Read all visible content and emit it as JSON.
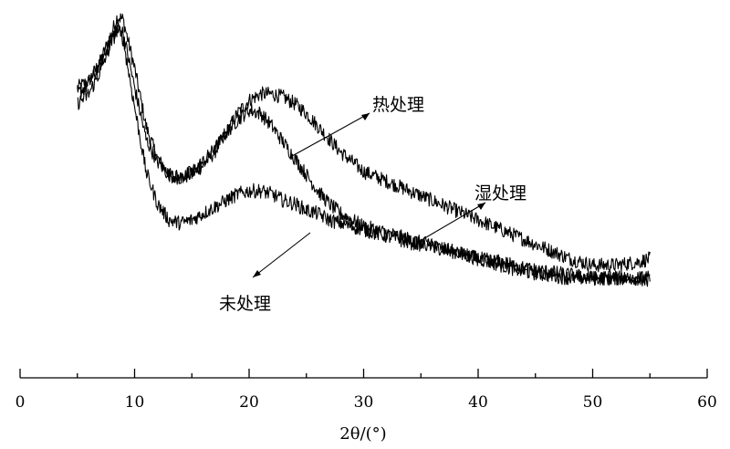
{
  "chart_data": {
    "type": "line",
    "title": "",
    "xlabel": "2θ/(°)",
    "ylabel": "",
    "xlim": [
      0,
      60
    ],
    "x_ticks": [
      "0",
      "10",
      "20",
      "30",
      "40",
      "50",
      "60"
    ],
    "grid": false,
    "series": [
      {
        "name": "热处理",
        "x": [
          5,
          6,
          7,
          8,
          8.5,
          9,
          10,
          11,
          12,
          13,
          14,
          15,
          16,
          17,
          18,
          19,
          20,
          21,
          22,
          23,
          24,
          25,
          26,
          27,
          28,
          29,
          30,
          32,
          34,
          36,
          38,
          40,
          42,
          44,
          46,
          48,
          50,
          52,
          54,
          55
        ],
        "y": [
          0.78,
          0.8,
          0.86,
          0.95,
          1.0,
          0.99,
          0.84,
          0.66,
          0.56,
          0.51,
          0.5,
          0.51,
          0.54,
          0.58,
          0.64,
          0.7,
          0.74,
          0.76,
          0.76,
          0.75,
          0.73,
          0.7,
          0.66,
          0.62,
          0.58,
          0.55,
          0.52,
          0.49,
          0.46,
          0.43,
          0.4,
          0.37,
          0.34,
          0.31,
          0.28,
          0.25,
          0.23,
          0.23,
          0.24,
          0.25
        ]
      },
      {
        "name": "湿处理",
        "x": [
          5,
          6,
          7,
          8,
          8.5,
          9,
          10,
          11,
          12,
          13,
          14,
          15,
          16,
          17,
          18,
          19,
          20,
          21,
          22,
          23,
          24,
          25,
          26,
          27,
          28,
          29,
          30,
          32,
          34,
          36,
          38,
          40,
          42,
          44,
          46,
          48,
          50,
          52,
          54,
          55
        ],
        "y": [
          0.76,
          0.79,
          0.85,
          0.93,
          0.97,
          0.95,
          0.78,
          0.62,
          0.55,
          0.51,
          0.5,
          0.52,
          0.55,
          0.59,
          0.64,
          0.68,
          0.71,
          0.7,
          0.66,
          0.61,
          0.56,
          0.51,
          0.46,
          0.42,
          0.39,
          0.37,
          0.35,
          0.33,
          0.31,
          0.29,
          0.27,
          0.25,
          0.23,
          0.21,
          0.2,
          0.19,
          0.19,
          0.19,
          0.19,
          0.19
        ]
      },
      {
        "name": "未处理",
        "x": [
          5,
          6,
          7,
          8,
          8.5,
          9,
          10,
          11,
          12,
          13,
          14,
          15,
          16,
          17,
          18,
          19,
          20,
          21,
          22,
          23,
          24,
          25,
          26,
          27,
          28,
          29,
          30,
          32,
          34,
          36,
          38,
          40,
          42,
          44,
          46,
          48,
          50,
          52,
          54,
          55
        ],
        "y": [
          0.73,
          0.76,
          0.83,
          0.92,
          0.96,
          0.93,
          0.72,
          0.52,
          0.42,
          0.37,
          0.36,
          0.37,
          0.39,
          0.41,
          0.43,
          0.45,
          0.46,
          0.46,
          0.45,
          0.43,
          0.42,
          0.4,
          0.39,
          0.37,
          0.36,
          0.35,
          0.34,
          0.32,
          0.3,
          0.29,
          0.27,
          0.25,
          0.24,
          0.22,
          0.21,
          0.2,
          0.19,
          0.19,
          0.19,
          0.18
        ]
      }
    ]
  }
}
